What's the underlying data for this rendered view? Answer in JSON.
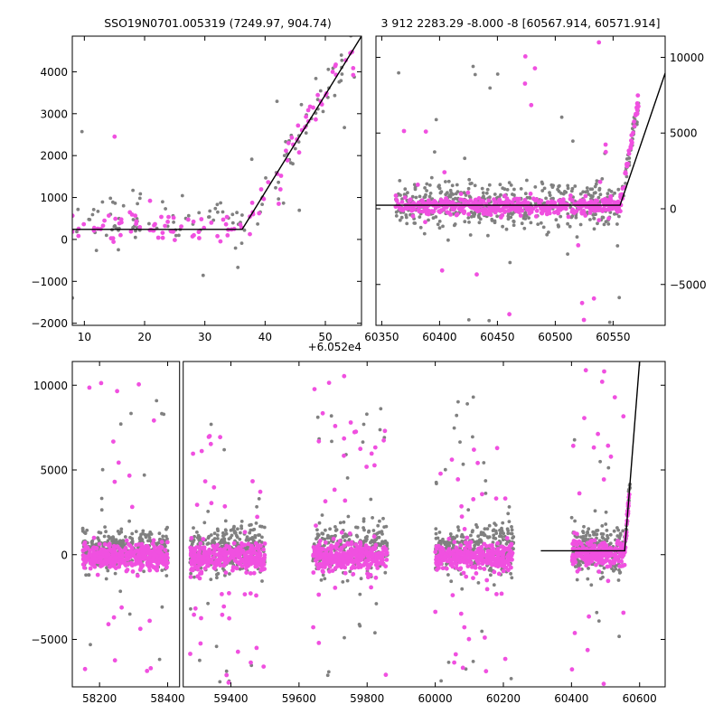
{
  "chart_data": [
    {
      "id": "top-left",
      "type": "scatter",
      "title": "SSO19N0701.005319 (7249.97, 904.74)",
      "offset_label": "+6.052e4",
      "xlabel": "",
      "ylabel": "",
      "xlim": [
        8,
        56
      ],
      "ylim": [
        -2050,
        4850
      ],
      "xticks": [
        10,
        20,
        30,
        40,
        50
      ],
      "yticks": [
        -2000,
        -1000,
        0,
        1000,
        2000,
        3000,
        4000
      ],
      "ytick_side": "left",
      "grid": false,
      "colors": {
        "raw": "#808080",
        "sel": "#f050e0",
        "model": "#000000"
      },
      "model_line": {
        "x": [
          8,
          36.2,
          56
        ],
        "y": [
          240,
          240,
          4850
        ]
      },
      "series": [
        {
          "role": "raw",
          "count": 130,
          "seed": 11,
          "segments": [
            {
              "x": [
                8,
                36
              ],
              "center": 500,
              "spread": 550,
              "outlier": 0.08,
              "outlier_range": [
                -1800,
                2600
              ]
            },
            {
              "x": [
                36,
                55
              ],
              "trend": {
                "x0": 36.2,
                "y0": 240,
                "slope": 233
              },
              "spread": 550,
              "outlier": 0.05,
              "outlier_range": [
                -200,
                4600
              ]
            }
          ]
        },
        {
          "role": "sel",
          "count": 110,
          "seed": 21,
          "segments": [
            {
              "x": [
                8,
                36
              ],
              "center": 250,
              "spread": 330,
              "outlier": 0.08,
              "outlier_range": [
                -1700,
                3700
              ]
            },
            {
              "x": [
                36,
                55
              ],
              "trend": {
                "x0": 36.2,
                "y0": 240,
                "slope": 233
              },
              "spread": 380,
              "outlier": 0.04,
              "outlier_range": [
                -800,
                4400
              ]
            }
          ]
        }
      ]
    },
    {
      "id": "top-right",
      "type": "scatter",
      "title": "3 912 2283.29 -8.000 -8 [60567.914, 60571.914]",
      "xlabel": "",
      "ylabel": "",
      "xlim": [
        60345,
        60595
      ],
      "ylim": [
        -7700,
        11400
      ],
      "xticks": [
        60350,
        60400,
        60450,
        60500,
        60550
      ],
      "yticks": [
        -5000,
        0,
        5000,
        10000
      ],
      "ytick_side": "right",
      "grid": false,
      "colors": {
        "raw": "#808080",
        "sel": "#f050e0",
        "model": "#000000"
      },
      "model_line": {
        "x": [
          60345,
          60556,
          60595
        ],
        "y": [
          230,
          230,
          8950
        ]
      },
      "series": [
        {
          "role": "raw",
          "count": 560,
          "seed": 31,
          "segments": [
            {
              "x": [
                60362,
                60556
              ],
              "center": 300,
              "spread": 1300,
              "outlier": 0.07,
              "outlier_range": [
                -7500,
                10500
              ]
            },
            {
              "x": [
                60556,
                60572
              ],
              "trend": {
                "x0": 60556,
                "y0": 230,
                "slope": 430
              },
              "spread": 700,
              "outlier": 0,
              "outlier_range": [
                0,
                0
              ]
            }
          ]
        },
        {
          "role": "sel",
          "count": 520,
          "seed": 41,
          "segments": [
            {
              "x": [
                60362,
                60556
              ],
              "center": 150,
              "spread": 500,
              "outlier": 0.06,
              "outlier_range": [
                -7400,
                11000
              ]
            },
            {
              "x": [
                60556,
                60572
              ],
              "trend": {
                "x0": 60556,
                "y0": 230,
                "slope": 430
              },
              "spread": 500,
              "outlier": 0,
              "outlier_range": [
                0,
                0
              ]
            }
          ]
        }
      ]
    },
    {
      "id": "bottom",
      "type": "scatter",
      "title": "",
      "xlabel": "",
      "ylabel": "",
      "broken_axis": true,
      "xlim": [
        [
          58120,
          58435
        ],
        [
          59260,
          60675
        ]
      ],
      "ylim": [
        -7800,
        11400
      ],
      "xticks": [
        58200,
        58400,
        59400,
        59600,
        59800,
        60000,
        60200,
        60400,
        60600
      ],
      "yticks": [
        -5000,
        0,
        5000,
        10000
      ],
      "ytick_side": "left",
      "grid": false,
      "colors": {
        "raw": "#808080",
        "sel": "#f050e0",
        "model": "#000000"
      },
      "model_line": {
        "x": [
          60310,
          60556,
          60600
        ],
        "y": [
          230,
          230,
          11400
        ]
      },
      "series": [
        {
          "role": "raw",
          "count": 1700,
          "seed": 51,
          "segments": [
            {
              "x": [
                58150,
                58400
              ],
              "center": 300,
              "spread": 1100,
              "outlier": 0.07,
              "outlier_range": [
                -7000,
                10800
              ]
            },
            {
              "x": [
                59280,
                59500
              ],
              "center": 350,
              "spread": 1300,
              "outlier": 0.08,
              "outlier_range": [
                -7500,
                8000
              ]
            },
            {
              "x": [
                59640,
                59860
              ],
              "center": 350,
              "spread": 1300,
              "outlier": 0.08,
              "outlier_range": [
                -7500,
                9000
              ]
            },
            {
              "x": [
                60000,
                60230
              ],
              "center": 300,
              "spread": 1200,
              "outlier": 0.07,
              "outlier_range": [
                -7500,
                9300
              ]
            },
            {
              "x": [
                60400,
                60556
              ],
              "center": 300,
              "spread": 1300,
              "outlier": 0.08,
              "outlier_range": [
                -7000,
                8200
              ]
            },
            {
              "x": [
                60556,
                60572
              ],
              "trend": {
                "x0": 60556,
                "y0": 230,
                "slope": 250
              },
              "spread": 700,
              "outlier": 0,
              "outlier_range": [
                0,
                0
              ]
            }
          ]
        },
        {
          "role": "sel",
          "count": 1700,
          "seed": 61,
          "segments": [
            {
              "x": [
                58150,
                58400
              ],
              "center": -100,
              "spread": 650,
              "outlier": 0.08,
              "outlier_range": [
                -7800,
                10800
              ]
            },
            {
              "x": [
                59280,
                59500
              ],
              "center": -150,
              "spread": 800,
              "outlier": 0.1,
              "outlier_range": [
                -7800,
                7000
              ]
            },
            {
              "x": [
                59640,
                59860
              ],
              "center": -100,
              "spread": 750,
              "outlier": 0.09,
              "outlier_range": [
                -7500,
                11400
              ]
            },
            {
              "x": [
                60000,
                60230
              ],
              "center": -100,
              "spread": 700,
              "outlier": 0.08,
              "outlier_range": [
                -7000,
                6600
              ]
            },
            {
              "x": [
                60400,
                60556
              ],
              "center": 50,
              "spread": 700,
              "outlier": 0.09,
              "outlier_range": [
                -7800,
                11000
              ]
            },
            {
              "x": [
                60556,
                60572
              ],
              "trend": {
                "x0": 60556,
                "y0": 230,
                "slope": 250
              },
              "spread": 500,
              "outlier": 0,
              "outlier_range": [
                0,
                0
              ]
            }
          ]
        }
      ]
    }
  ]
}
